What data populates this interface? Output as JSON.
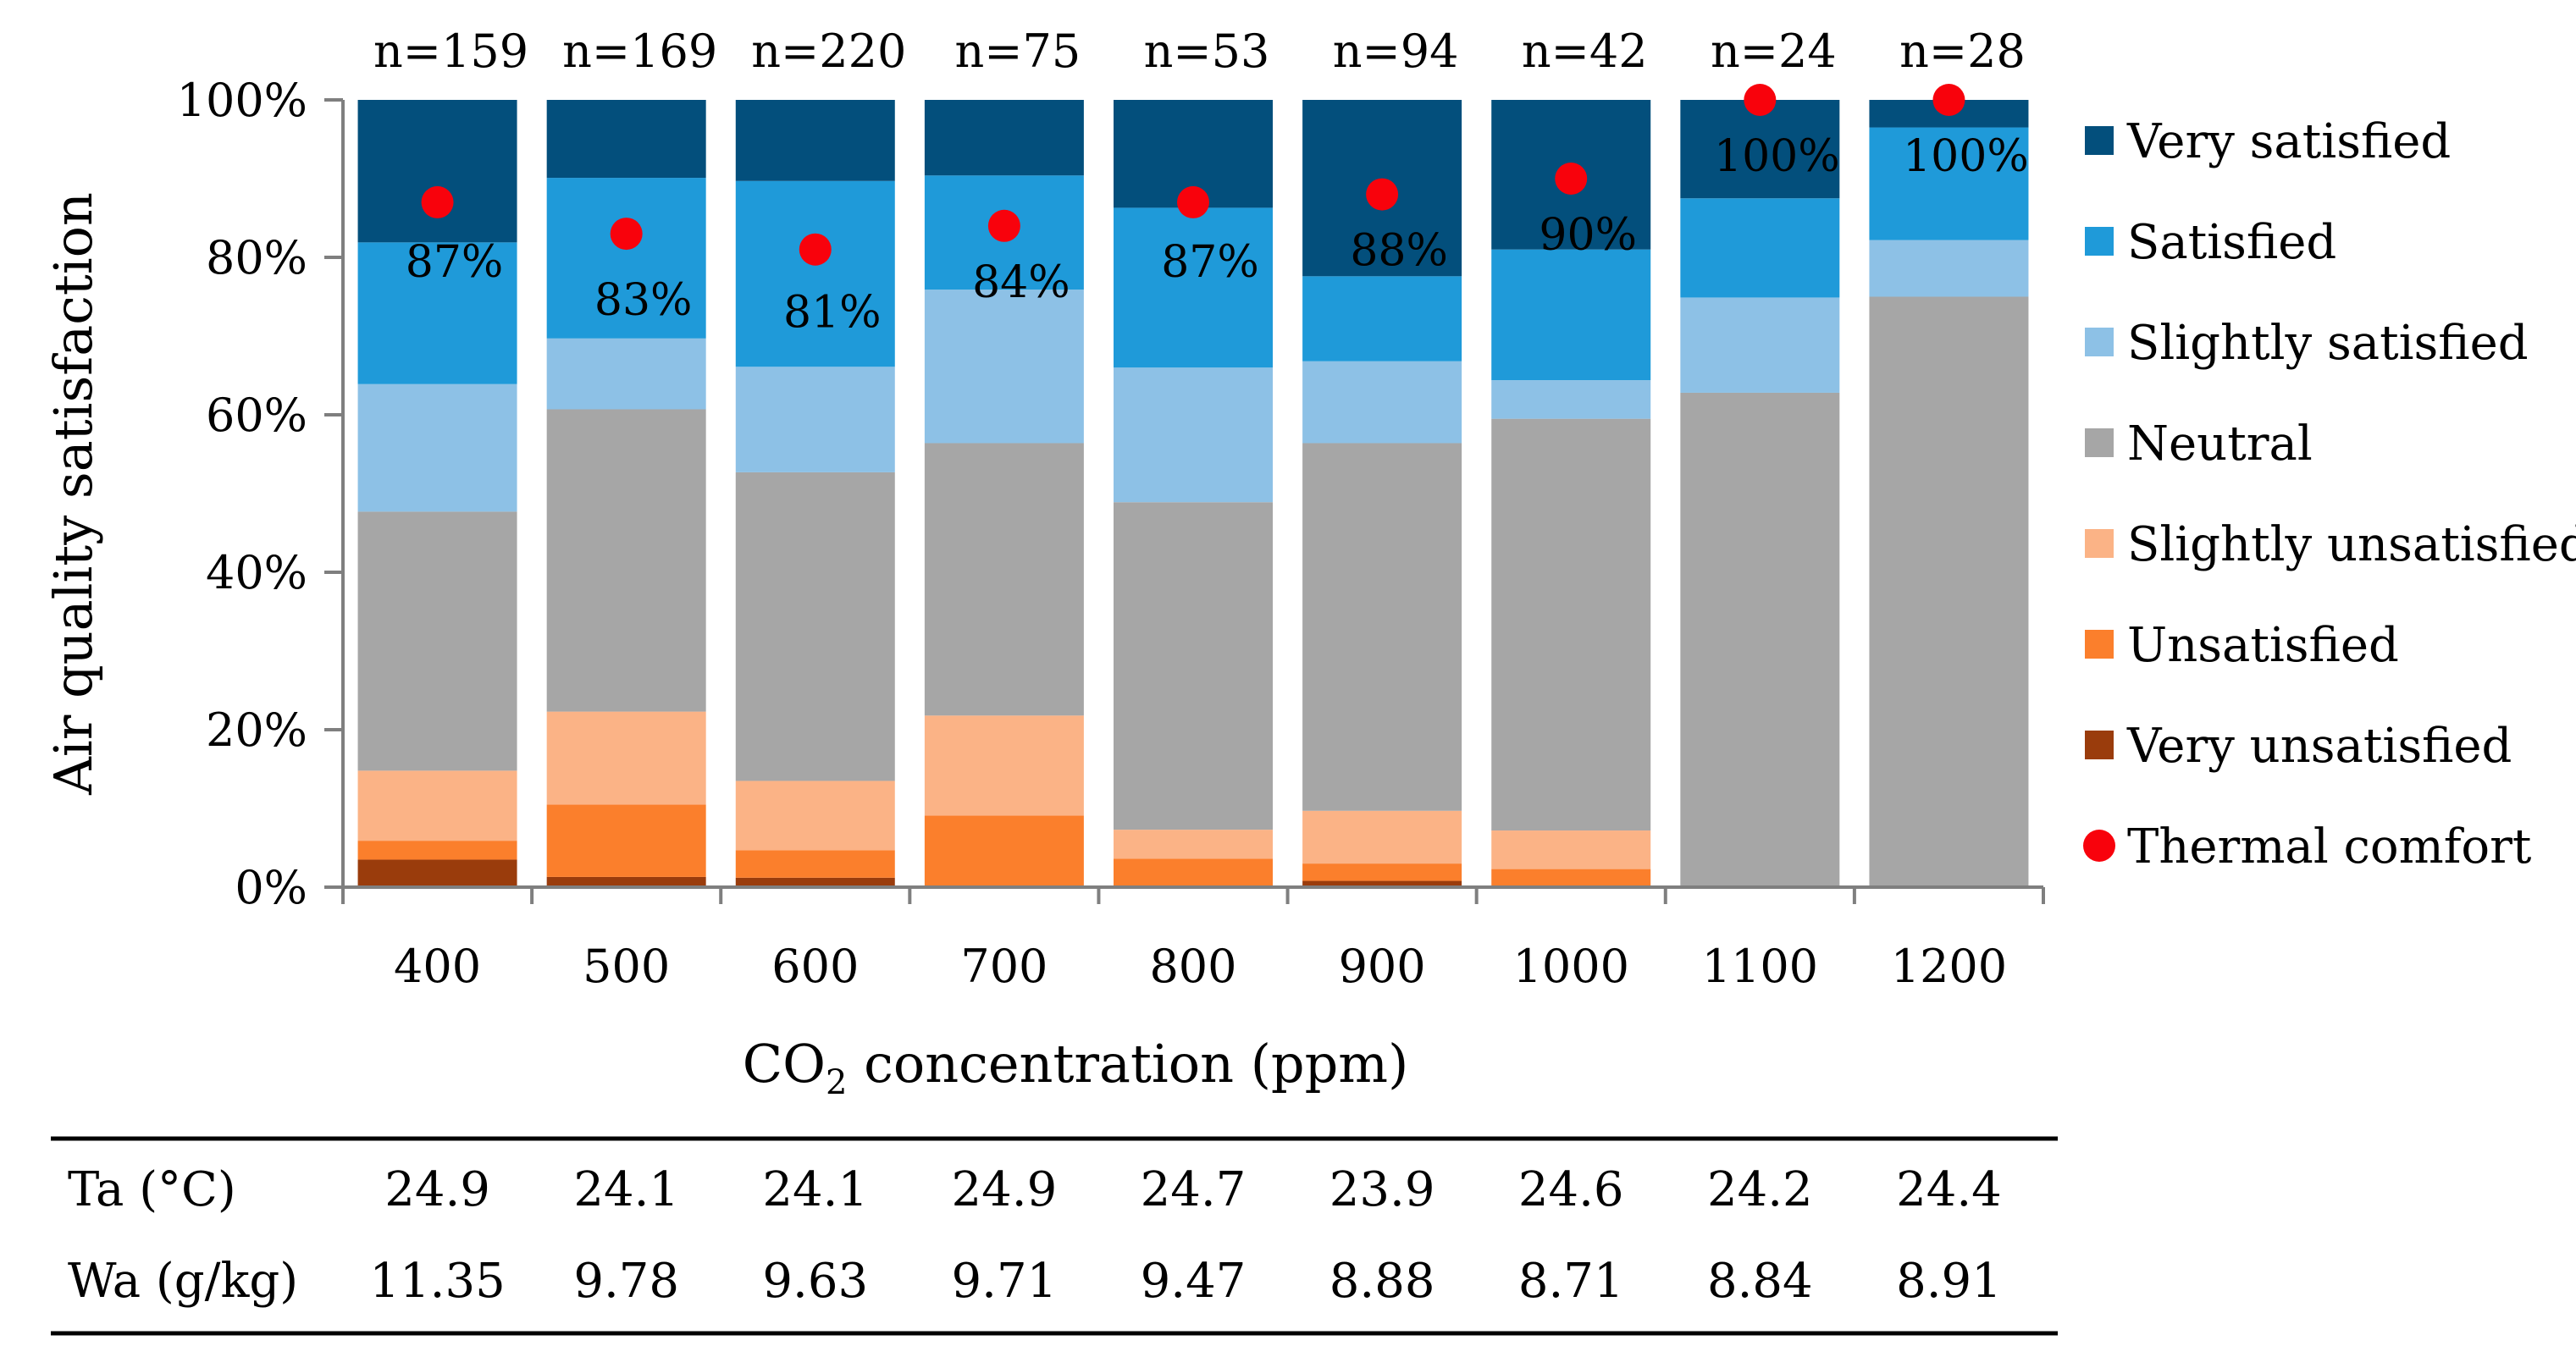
{
  "chart_data": {
    "type": "bar",
    "stacked": true,
    "title": "",
    "xlabel": {
      "prefix": "CO",
      "subscript": "2",
      "suffix": " concentration (ppm)"
    },
    "ylabel": "Air quality satisfaction",
    "ylim": [
      0,
      100
    ],
    "yticks": [
      0,
      20,
      40,
      60,
      80,
      100
    ],
    "ytick_labels": [
      "0%",
      "20%",
      "40%",
      "60%",
      "80%",
      "100%"
    ],
    "categories": [
      "400",
      "500",
      "600",
      "700",
      "800",
      "900",
      "1000",
      "1100",
      "1200"
    ],
    "sample_sizes": [
      "n=159",
      "n=169",
      "n=220",
      "n=75",
      "n=53",
      "n=94",
      "n=42",
      "n=24",
      "n=28"
    ],
    "legend_position": "right",
    "series": [
      {
        "name": "Very unsatisfied",
        "color": "#9A3C0C",
        "values": [
          3.5,
          1.3,
          1.2,
          0.0,
          0.0,
          0.8,
          0.0,
          0.0,
          0.0
        ]
      },
      {
        "name": "Unsatisfied",
        "color": "#FB7F2C",
        "values": [
          2.4,
          9.2,
          3.5,
          9.1,
          3.6,
          2.2,
          2.3,
          0.0,
          0.0
        ]
      },
      {
        "name": "Slightly unsatisfied",
        "color": "#FBB386",
        "values": [
          8.9,
          11.8,
          8.8,
          12.7,
          3.7,
          6.7,
          4.9,
          0.0,
          0.0
        ]
      },
      {
        "name": "Neutral",
        "color": "#A6A6A6",
        "values": [
          32.9,
          38.4,
          39.2,
          34.6,
          41.6,
          46.7,
          52.3,
          62.8,
          75.0
        ]
      },
      {
        "name": "Slightly satisfied",
        "color": "#8DC1E6",
        "values": [
          16.2,
          9.0,
          13.4,
          19.5,
          17.1,
          10.4,
          4.9,
          12.1,
          7.2
        ]
      },
      {
        "name": "Satisfied",
        "color": "#1F9AD9",
        "values": [
          18.0,
          20.4,
          23.6,
          14.5,
          20.3,
          10.8,
          16.6,
          12.6,
          14.3
        ]
      },
      {
        "name": "Very satisfied",
        "color": "#034F7C",
        "values": [
          18.1,
          9.9,
          10.3,
          9.6,
          13.7,
          22.4,
          19.0,
          12.5,
          3.5
        ]
      }
    ],
    "overlay": {
      "name": "Thermal comfort",
      "color": "#F8020C",
      "values": [
        87,
        83,
        81,
        84,
        87,
        88,
        90,
        100,
        100
      ],
      "labels": [
        "87%",
        "83%",
        "81%",
        "84%",
        "87%",
        "88%",
        "90%",
        "100%",
        "100%"
      ]
    },
    "legend_order": [
      "Very satisfied",
      "Satisfied",
      "Slightly satisfied",
      "Neutral",
      "Slightly unsatisfied",
      "Unsatisfied",
      "Very unsatisfied",
      "Thermal comfort"
    ],
    "table": {
      "rows": [
        {
          "label": "Ta (°C)",
          "values": [
            "24.9",
            "24.1",
            "24.1",
            "24.9",
            "24.7",
            "23.9",
            "24.6",
            "24.2",
            "24.4"
          ]
        },
        {
          "label": "Wa (g/kg)",
          "values": [
            "11.35",
            "9.78",
            "9.63",
            "9.71",
            "9.47",
            "8.88",
            "8.71",
            "8.84",
            "8.91"
          ]
        }
      ]
    }
  }
}
